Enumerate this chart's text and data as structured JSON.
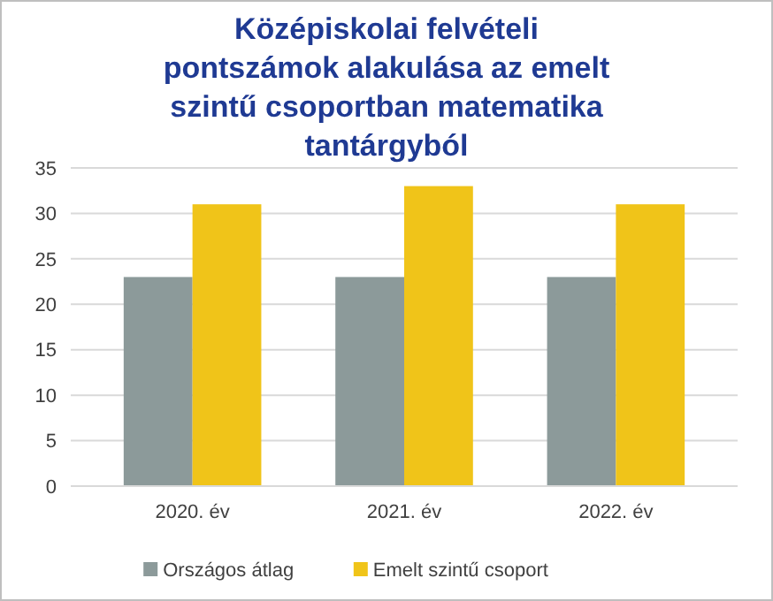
{
  "chart_data": {
    "type": "bar",
    "title": "Középiskolai  felvételi pontszámok alakulása  az emelt szintű csoportban matematika tantárgyból",
    "categories": [
      "2020. év",
      "2021. év",
      "2022. év"
    ],
    "series": [
      {
        "name": "Országos átlag",
        "color": "#8c9a9a",
        "values": [
          23,
          23,
          23
        ]
      },
      {
        "name": "Emelt szintű csoport",
        "color": "#f0c419",
        "values": [
          31,
          33,
          31
        ]
      }
    ],
    "ylim": [
      0,
      35
    ],
    "yticks": [
      0,
      5,
      10,
      15,
      20,
      25,
      30,
      35
    ],
    "grid": "y",
    "legend": "bottom"
  }
}
